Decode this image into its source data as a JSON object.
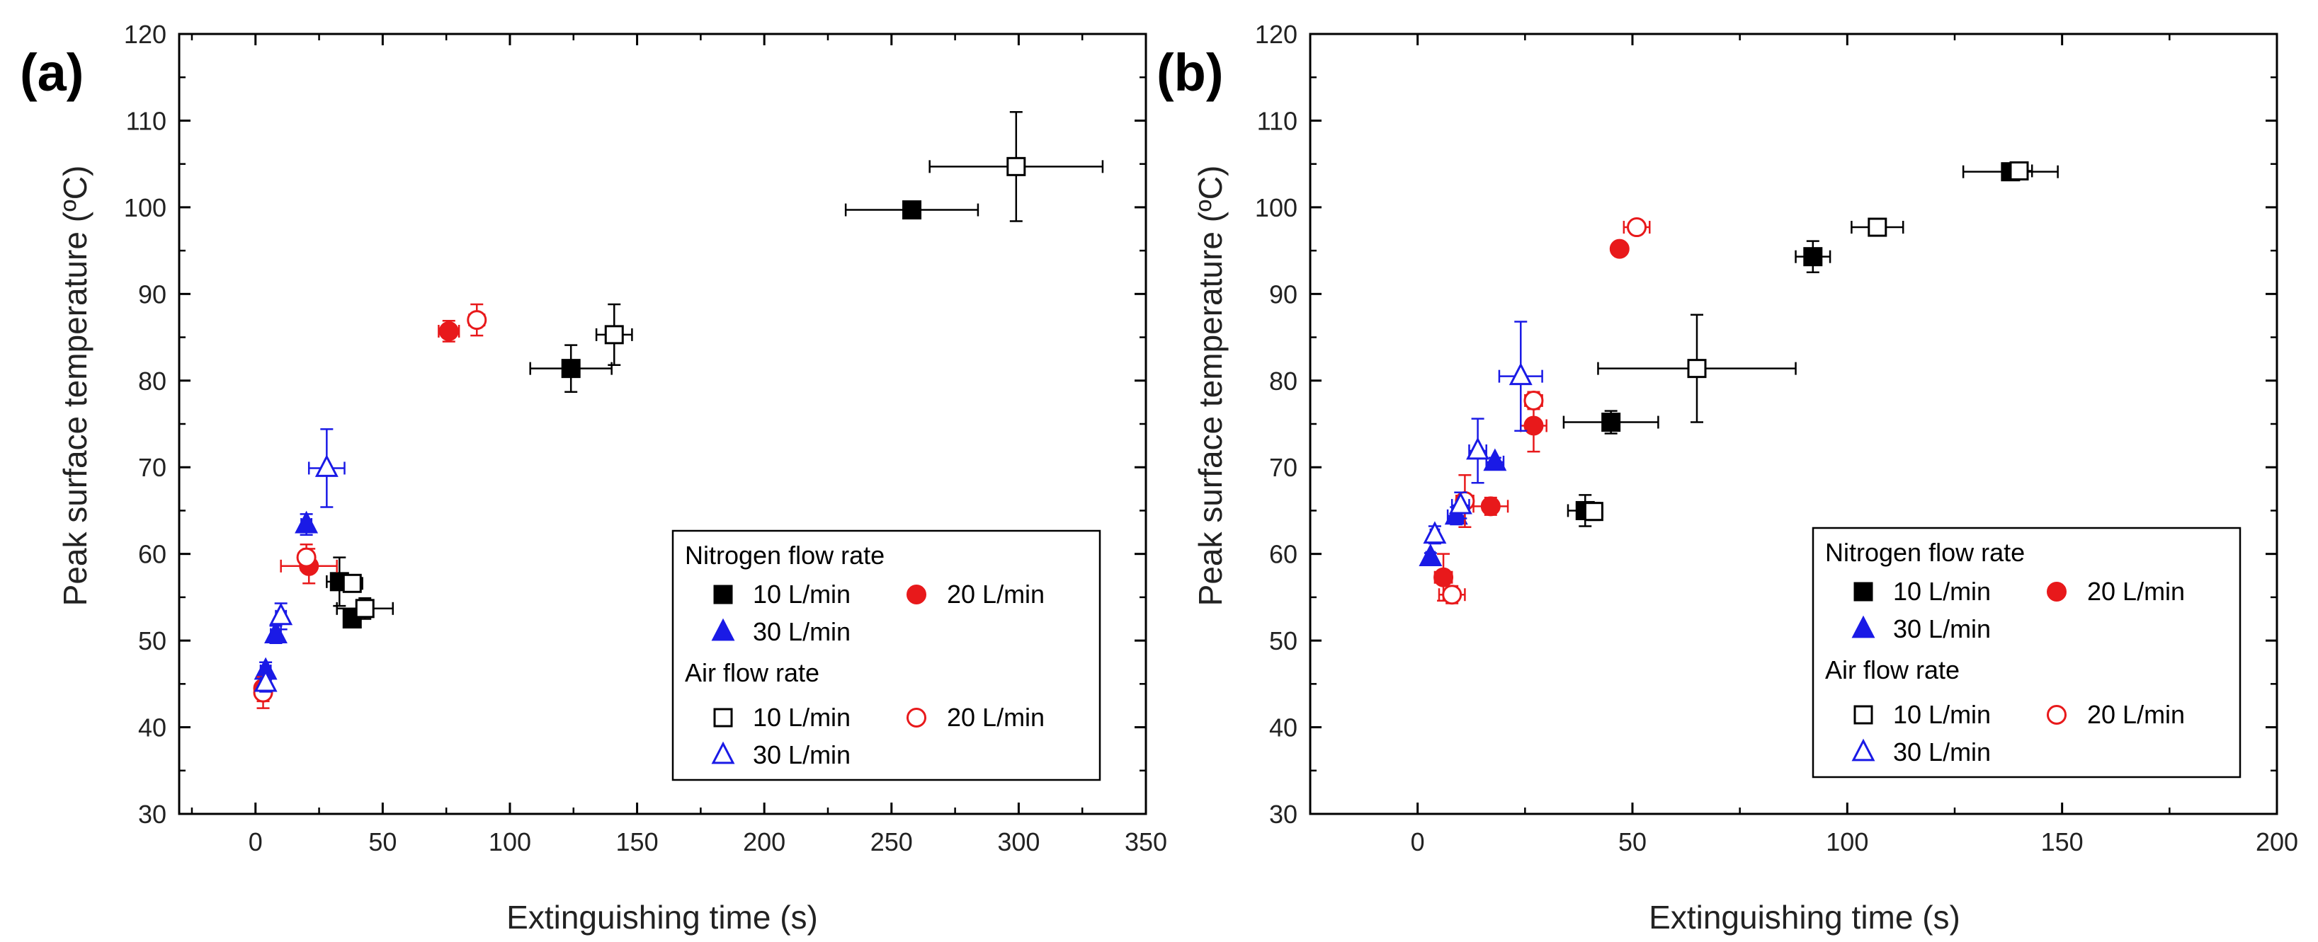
{
  "figure": {
    "marker_colors": {
      "N2_10": "#000000",
      "N2_20": "#e8191b",
      "N2_30": "#1a1ae6",
      "Air_10": "#000000",
      "Air_20": "#e8191b",
      "Air_30": "#1a1ae6"
    }
  },
  "chart_data": [
    {
      "type": "scatter",
      "panel_label": "(a)",
      "xlabel": "Extinguishing time (s)",
      "ylabel": "Peak surface temperature (ºC)",
      "xlim": [
        -30,
        350
      ],
      "ylim": [
        30,
        120
      ],
      "xticks": [
        0,
        50,
        100,
        150,
        200,
        250,
        300,
        350
      ],
      "yticks": [
        30,
        40,
        50,
        60,
        70,
        80,
        90,
        100,
        110,
        120
      ],
      "xtick_labels": [
        "0",
        "50",
        "100",
        "150",
        "200",
        "250",
        "300",
        "350"
      ],
      "ytick_labels": [
        "30",
        "40",
        "50",
        "60",
        "70",
        "80",
        "90",
        "100",
        "110",
        "120"
      ],
      "legend": {
        "position": "bottom-right",
        "headers": [
          "Nitrogen flow rate",
          "Air flow rate"
        ],
        "entries": [
          {
            "group": 0,
            "key": "N2_10",
            "label": "10 L/min"
          },
          {
            "group": 0,
            "key": "N2_20",
            "label": "20 L/min"
          },
          {
            "group": 0,
            "key": "N2_30",
            "label": "30 L/min"
          },
          {
            "group": 1,
            "key": "Air_10",
            "label": "10 L/min"
          },
          {
            "group": 1,
            "key": "Air_20",
            "label": "20 L/min"
          },
          {
            "group": 1,
            "key": "Air_30",
            "label": "30 L/min"
          }
        ]
      },
      "series": [
        {
          "key": "N2_10",
          "name": "Nitrogen 10 L/min",
          "marker": "square",
          "filled": true,
          "points": [
            {
              "x": 258,
              "y": 99.7,
              "xerr": 26,
              "yerr": 0.5
            },
            {
              "x": 124,
              "y": 81.4,
              "xerr": 16,
              "yerr": 2.7
            },
            {
              "x": 33,
              "y": 56.8,
              "xerr": 5,
              "yerr": 2.8
            },
            {
              "x": 38,
              "y": 52.5,
              "xerr": 3,
              "yerr": 1.0
            }
          ]
        },
        {
          "key": "N2_20",
          "name": "Nitrogen 20 L/min",
          "marker": "circle",
          "filled": true,
          "points": [
            {
              "x": 76,
              "y": 85.7,
              "xerr": 4,
              "yerr": 1.2
            },
            {
              "x": 21,
              "y": 58.6,
              "xerr": 11,
              "yerr": 2.0
            },
            {
              "x": 3,
              "y": 44.5,
              "xerr": 2,
              "yerr": 1.5
            }
          ]
        },
        {
          "key": "N2_30",
          "name": "Nitrogen 30 L/min",
          "marker": "triangle",
          "filled": true,
          "points": [
            {
              "x": 20,
              "y": 63.4,
              "xerr": 2,
              "yerr": 1.2
            },
            {
              "x": 8,
              "y": 50.7,
              "xerr": 2,
              "yerr": 1.0
            },
            {
              "x": 4,
              "y": 46.5,
              "xerr": 2,
              "yerr": 1.0
            }
          ]
        },
        {
          "key": "Air_10",
          "name": "Air 10 L/min",
          "marker": "square",
          "filled": false,
          "points": [
            {
              "x": 299,
              "y": 104.7,
              "xerr": 34,
              "yerr": 6.3
            },
            {
              "x": 141,
              "y": 85.3,
              "xerr": 7,
              "yerr": 3.5
            },
            {
              "x": 38,
              "y": 56.6,
              "xerr": 4,
              "yerr": 0.6
            },
            {
              "x": 43,
              "y": 53.7,
              "xerr": 11,
              "yerr": 1.2
            }
          ]
        },
        {
          "key": "Air_20",
          "name": "Air 20 L/min",
          "marker": "circle",
          "filled": false,
          "points": [
            {
              "x": 87,
              "y": 87.0,
              "xerr": 3,
              "yerr": 1.8
            },
            {
              "x": 20,
              "y": 59.6,
              "xerr": 2,
              "yerr": 1.5
            },
            {
              "x": 3,
              "y": 44.0,
              "xerr": 2,
              "yerr": 1.8
            }
          ]
        },
        {
          "key": "Air_30",
          "name": "Air 30 L/min",
          "marker": "triangle",
          "filled": false,
          "points": [
            {
              "x": 28,
              "y": 69.9,
              "xerr": 7,
              "yerr": 4.5
            },
            {
              "x": 10,
              "y": 52.8,
              "xerr": 2,
              "yerr": 1.5
            },
            {
              "x": 4,
              "y": 45.1,
              "xerr": 2,
              "yerr": 1.0
            }
          ]
        }
      ]
    },
    {
      "type": "scatter",
      "panel_label": "(b)",
      "xlabel": "Extinguishing time (s)",
      "ylabel": "Peak surface temperature (ºC)",
      "xlim": [
        -25,
        200
      ],
      "ylim": [
        30,
        120
      ],
      "xticks": [
        0,
        50,
        100,
        150,
        200
      ],
      "yticks": [
        30,
        40,
        50,
        60,
        70,
        80,
        90,
        100,
        110,
        120
      ],
      "xtick_labels": [
        "0",
        "50",
        "100",
        "150",
        "200"
      ],
      "ytick_labels": [
        "30",
        "40",
        "50",
        "60",
        "70",
        "80",
        "90",
        "100",
        "110",
        "120"
      ],
      "legend": {
        "position": "bottom-right",
        "headers": [
          "Nitrogen flow rate",
          "Air flow rate"
        ],
        "entries": [
          {
            "group": 0,
            "key": "N2_10",
            "label": "10 L/min"
          },
          {
            "group": 0,
            "key": "N2_20",
            "label": "20 L/min"
          },
          {
            "group": 0,
            "key": "N2_30",
            "label": "30 L/min"
          },
          {
            "group": 1,
            "key": "Air_10",
            "label": "10 L/min"
          },
          {
            "group": 1,
            "key": "Air_20",
            "label": "20 L/min"
          },
          {
            "group": 1,
            "key": "Air_30",
            "label": "30 L/min"
          }
        ]
      },
      "series": [
        {
          "key": "N2_10",
          "name": "Nitrogen 10 L/min",
          "marker": "square",
          "filled": true,
          "points": [
            {
              "x": 138,
              "y": 104.1,
              "xerr": 11,
              "yerr": 0.5
            },
            {
              "x": 92,
              "y": 94.3,
              "xerr": 4,
              "yerr": 1.8
            },
            {
              "x": 45,
              "y": 75.2,
              "xerr": 11,
              "yerr": 1.3
            },
            {
              "x": 39,
              "y": 65.0,
              "xerr": 4,
              "yerr": 1.8
            }
          ]
        },
        {
          "key": "N2_20",
          "name": "Nitrogen 20 L/min",
          "marker": "circle",
          "filled": true,
          "points": [
            {
              "x": 47,
              "y": 95.2,
              "xerr": 1.5,
              "yerr": 0.5
            },
            {
              "x": 27,
              "y": 74.8,
              "xerr": 3,
              "yerr": 3.0
            },
            {
              "x": 17,
              "y": 65.5,
              "xerr": 4,
              "yerr": 1.0
            },
            {
              "x": 6,
              "y": 57.3,
              "xerr": 2,
              "yerr": 2.7
            }
          ]
        },
        {
          "key": "N2_30",
          "name": "Nitrogen 30 L/min",
          "marker": "triangle",
          "filled": true,
          "points": [
            {
              "x": 18,
              "y": 70.6,
              "xerr": 2,
              "yerr": 0.5
            },
            {
              "x": 9,
              "y": 64.4,
              "xerr": 2,
              "yerr": 1.0
            },
            {
              "x": 3,
              "y": 59.6,
              "xerr": 1,
              "yerr": 0.5
            }
          ]
        },
        {
          "key": "Air_10",
          "name": "Air 10 L/min",
          "marker": "square",
          "filled": false,
          "points": [
            {
              "x": 140,
              "y": 104.2,
              "xerr": 3,
              "yerr": 0.8
            },
            {
              "x": 107,
              "y": 97.7,
              "xerr": 6,
              "yerr": 0.7
            },
            {
              "x": 65,
              "y": 81.4,
              "xerr": 23,
              "yerr": 6.2
            },
            {
              "x": 41,
              "y": 64.9,
              "xerr": 2,
              "yerr": 1.0
            }
          ]
        },
        {
          "key": "Air_20",
          "name": "Air 20 L/min",
          "marker": "circle",
          "filled": false,
          "points": [
            {
              "x": 51,
              "y": 97.7,
              "xerr": 3,
              "yerr": 0.8
            },
            {
              "x": 27,
              "y": 77.7,
              "xerr": 2,
              "yerr": 1.0
            },
            {
              "x": 11,
              "y": 66.1,
              "xerr": 2,
              "yerr": 3.0
            },
            {
              "x": 8,
              "y": 55.3,
              "xerr": 3,
              "yerr": 1.0
            }
          ]
        },
        {
          "key": "Air_30",
          "name": "Air 30 L/min",
          "marker": "triangle",
          "filled": false,
          "points": [
            {
              "x": 24,
              "y": 80.5,
              "xerr": 5,
              "yerr": 6.3
            },
            {
              "x": 14,
              "y": 71.9,
              "xerr": 2,
              "yerr": 3.7
            },
            {
              "x": 10,
              "y": 65.6,
              "xerr": 2,
              "yerr": 1.5
            },
            {
              "x": 4,
              "y": 62.2,
              "xerr": 1,
              "yerr": 1.0
            }
          ]
        }
      ]
    }
  ]
}
